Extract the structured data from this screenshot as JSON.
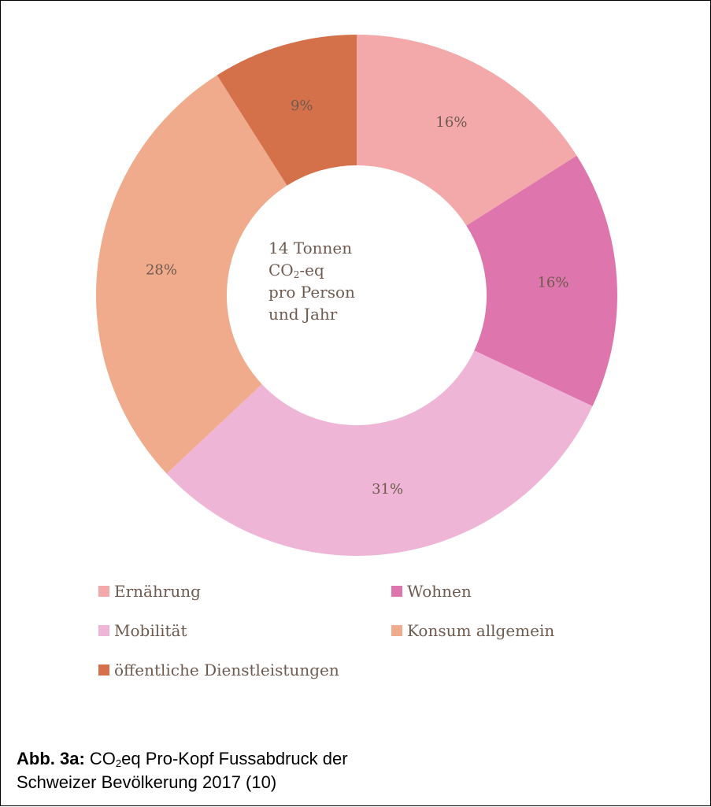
{
  "chart_data": {
    "type": "pie",
    "donut": true,
    "center_text": {
      "line1": "14 Tonnen",
      "line2_pre": "CO",
      "line2_sub": "2",
      "line2_post": "-eq",
      "line3": "pro Person",
      "line4": "und Jahr"
    },
    "slices": [
      {
        "name": "Ernährung",
        "value": 16,
        "label": "16%",
        "color": "#f3a9aa"
      },
      {
        "name": "Wohnen",
        "value": 16,
        "label": "16%",
        "color": "#de76ad"
      },
      {
        "name": "Mobilität",
        "value": 31,
        "label": "31%",
        "color": "#efb5d7"
      },
      {
        "name": "Konsum allgemein",
        "value": 28,
        "label": "28%",
        "color": "#efab8c"
      },
      {
        "name": "öffentliche Dienstleistungen",
        "value": 9,
        "label": "9%",
        "color": "#d4714a"
      }
    ],
    "legend": [
      {
        "label": "Ernährung",
        "color": "#f3a9aa"
      },
      {
        "label": "Wohnen",
        "color": "#de76ad"
      },
      {
        "label": "Mobilität",
        "color": "#efb5d7"
      },
      {
        "label": "Konsum allgemein",
        "color": "#efab8c"
      },
      {
        "label": "öffentliche Dienstleistungen",
        "color": "#d4714a"
      }
    ]
  },
  "caption": {
    "prefix": "Abb. 3a:",
    "text_pre": " CO",
    "text_sub": "2",
    "text_line1_post": "eq Pro-Kopf Fussabdruck der",
    "text_line2": "Schweizer Bevölkerung 2017 (10)"
  }
}
